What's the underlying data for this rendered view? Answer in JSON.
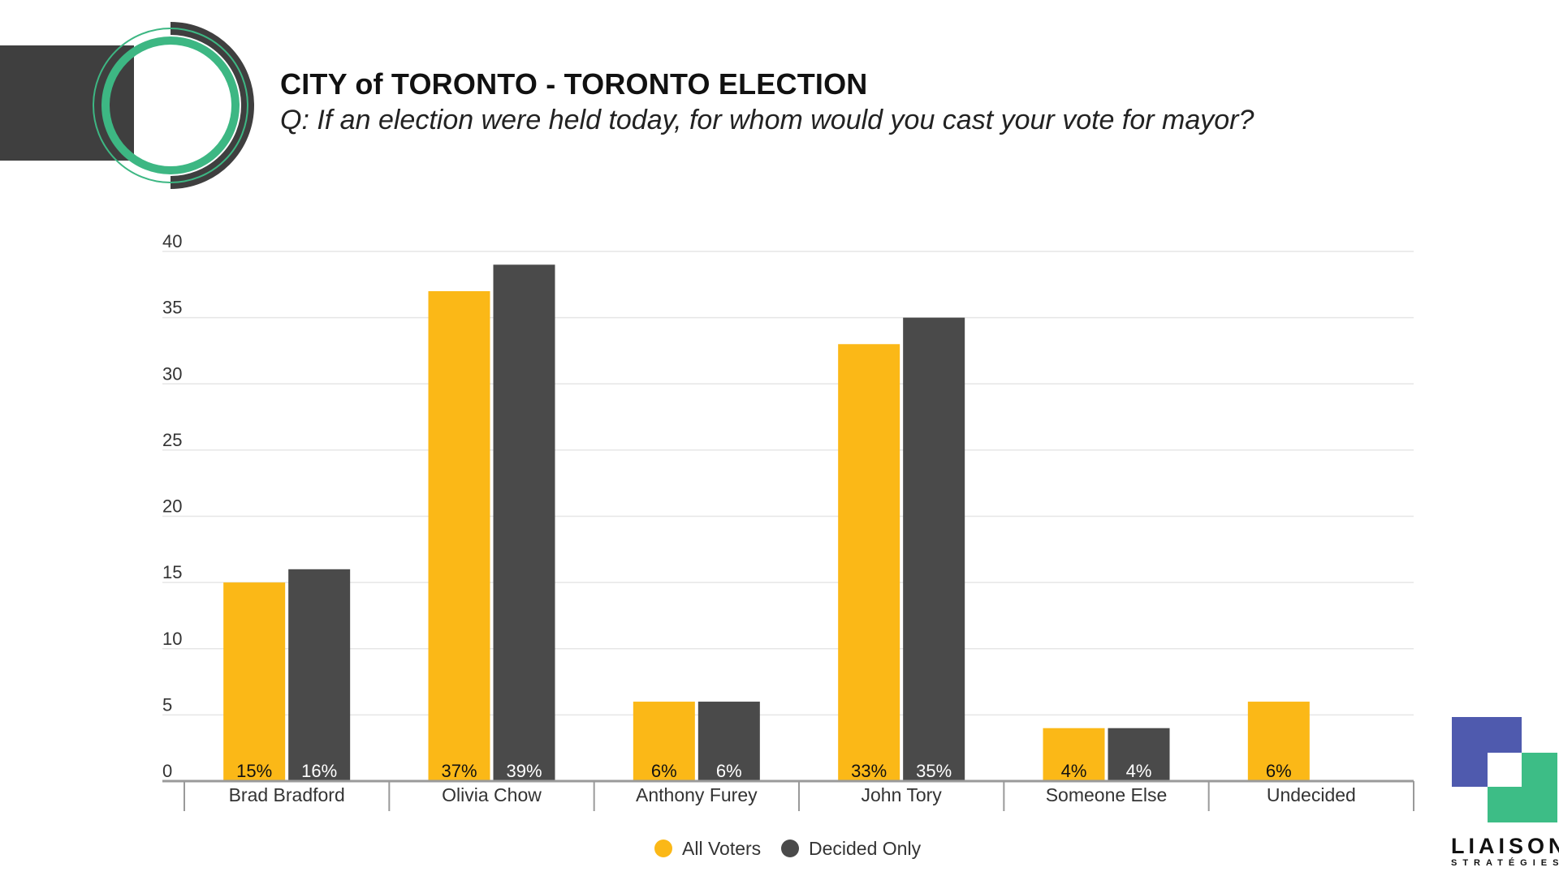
{
  "header": {
    "title": "CITY of TORONTO - TORONTO ELECTION",
    "subtitle": "Q: If an election were held today, for whom would you cast your vote for mayor?"
  },
  "logo": {
    "name": "LIAISON",
    "sub": "STRATÉGIES"
  },
  "colors": {
    "all_voters": "#FBB817",
    "decided_only": "#4A4A4A",
    "badge_green": "#3DB783",
    "badge_dark": "#3f3f3f",
    "logo_blue": "#4F5AAE",
    "logo_green": "#3DBD86",
    "grid": "#E6E6E6",
    "axis": "#9A9A9A"
  },
  "chart_data": {
    "type": "bar",
    "title": "",
    "xlabel": "",
    "ylabel": "",
    "ylim": [
      0,
      40
    ],
    "yticks": [
      0,
      5,
      10,
      15,
      20,
      25,
      30,
      35,
      40
    ],
    "grid": true,
    "legend_position": "bottom-center",
    "categories": [
      "Brad Bradford",
      "Olivia Chow",
      "Anthony Furey",
      "John Tory",
      "Someone Else",
      "Undecided"
    ],
    "series": [
      {
        "name": "All Voters",
        "color": "#FBB817",
        "label_color": "#111111",
        "values": [
          15,
          37,
          6,
          33,
          4,
          6
        ],
        "labels": [
          "15%",
          "37%",
          "6%",
          "33%",
          "4%",
          "6%"
        ]
      },
      {
        "name": "Decided Only",
        "color": "#4A4A4A",
        "label_color": "#ffffff",
        "values": [
          16,
          39,
          6,
          35,
          4,
          null
        ],
        "labels": [
          "16%",
          "39%",
          "6%",
          "35%",
          "4%",
          ""
        ]
      }
    ]
  }
}
